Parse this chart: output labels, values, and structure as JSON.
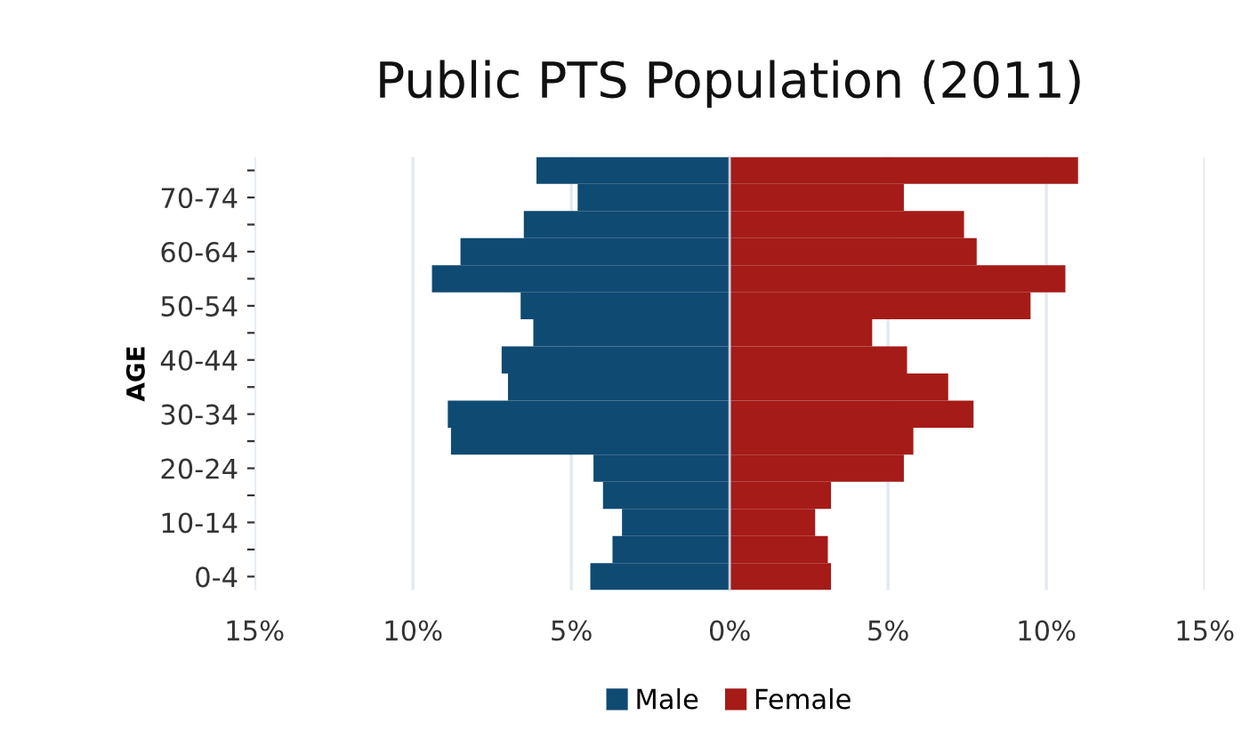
{
  "chart_data": {
    "type": "bar",
    "orientation": "horizontal",
    "stacked": true,
    "title": "Public PTS Population (2011)",
    "ylabel": "AGE",
    "categories": [
      null,
      "70-74",
      null,
      "60-64",
      null,
      "50-54",
      null,
      "40-44",
      null,
      "30-34",
      null,
      "20-24",
      null,
      "10-14",
      null,
      "0-4"
    ],
    "series": [
      {
        "name": "Male",
        "color": "#0f4a72",
        "values": [
          -6.1,
          -4.8,
          -6.5,
          -8.5,
          -9.4,
          -6.6,
          -6.2,
          -7.2,
          -7.0,
          -8.9,
          -8.8,
          -4.3,
          -4.0,
          -3.4,
          -3.7,
          -4.4
        ]
      },
      {
        "name": "Female",
        "color": "#a51b17",
        "values": [
          11.0,
          5.5,
          7.4,
          7.8,
          10.6,
          9.5,
          4.5,
          5.6,
          6.9,
          7.7,
          5.8,
          5.5,
          3.2,
          2.7,
          3.1,
          3.2
        ]
      }
    ],
    "xlim": [
      -15,
      15
    ],
    "xticks": [
      {
        "value": -15,
        "label": "15%"
      },
      {
        "value": -10,
        "label": "10%"
      },
      {
        "value": -5,
        "label": "5%"
      },
      {
        "value": 0,
        "label": "0%"
      },
      {
        "value": 5,
        "label": "5%"
      },
      {
        "value": 10,
        "label": "10%"
      },
      {
        "value": 15,
        "label": "15%"
      }
    ],
    "grid": "x",
    "legend": "bottom"
  }
}
